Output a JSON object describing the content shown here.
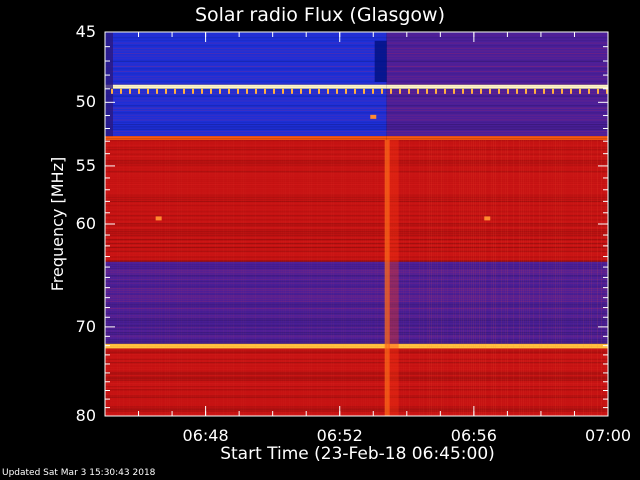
{
  "chart_data": {
    "type": "heatmap",
    "title": "Solar radio Flux (Glasgow)",
    "xlabel": "Start Time (23-Feb-18 06:45:00)",
    "ylabel": "Frequency [MHz]",
    "footer": "Updated Sat Mar  3 15:30:43 2018",
    "x_range_minutes": [
      0,
      15
    ],
    "x_range_labels": [
      "06:45",
      "07:00"
    ],
    "x_ticks": [
      {
        "minutes": 3,
        "label": "06:48"
      },
      {
        "minutes": 7,
        "label": "06:52"
      },
      {
        "minutes": 11,
        "label": "06:56"
      },
      {
        "minutes": 15,
        "label": "07:00"
      }
    ],
    "x_minor_every_minutes": 1,
    "y_range_mhz": [
      45,
      80
    ],
    "y_scale": "log-like (frequency axis, low at top)",
    "y_ticks": [
      {
        "mhz": 45,
        "label": "45"
      },
      {
        "mhz": 50,
        "label": "50"
      },
      {
        "mhz": 55,
        "label": "55"
      },
      {
        "mhz": 60,
        "label": "60"
      },
      {
        "mhz": 70,
        "label": "70"
      },
      {
        "mhz": 80,
        "label": "80"
      }
    ],
    "colormap": [
      "#3f1f9a",
      "#7a1f9a",
      "#d01010",
      "#ff2a0a",
      "#ff8a20",
      "#fff0a0"
    ],
    "event_start_minutes": 8.4,
    "bands": [
      {
        "from_mhz": 45.0,
        "to_mhz": 48.7,
        "level_before": "blue",
        "level_after": "purple"
      },
      {
        "from_mhz": 48.7,
        "to_mhz": 49.0,
        "level_before": "white",
        "level_after": "white"
      },
      {
        "from_mhz": 49.0,
        "to_mhz": 52.6,
        "level_before": "blue",
        "level_after": "purple"
      },
      {
        "from_mhz": 52.6,
        "to_mhz": 52.9,
        "level_before": "orange",
        "level_after": "orange"
      },
      {
        "from_mhz": 52.9,
        "to_mhz": 63.5,
        "level_before": "red",
        "level_after": "red"
      },
      {
        "from_mhz": 63.5,
        "to_mhz": 71.8,
        "level_before": "purple",
        "level_after": "purple"
      },
      {
        "from_mhz": 71.8,
        "to_mhz": 72.3,
        "level_before": "yellow",
        "level_after": "yellow"
      },
      {
        "from_mhz": 72.3,
        "to_mhz": 80.0,
        "level_before": "red",
        "level_after": "red"
      }
    ]
  }
}
